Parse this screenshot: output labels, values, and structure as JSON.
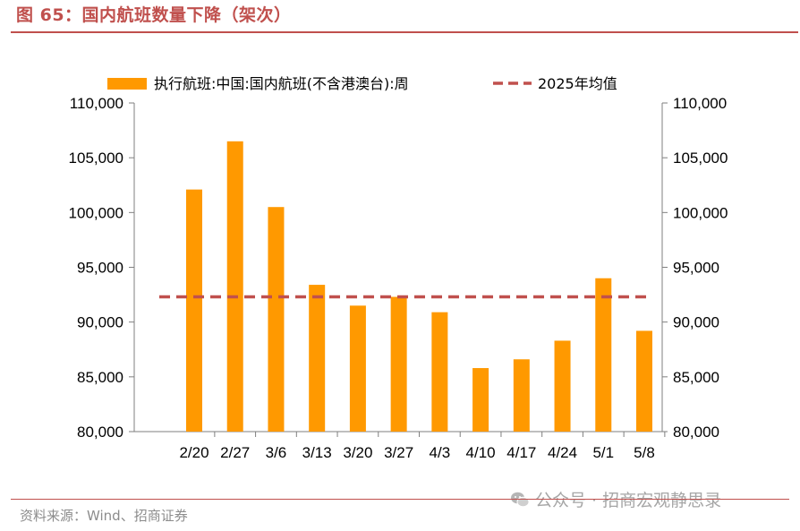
{
  "header": {
    "title": "图 65：国内航班数量下降（架次）"
  },
  "footer": {
    "source": "资料来源：Wind、招商证券",
    "watermark": "公众号 · 招商宏观静思录",
    "watermark_icon": "wechat-icon"
  },
  "colors": {
    "bar": "#ff9900",
    "avg_line": "#c0504d",
    "accent": "#c0504d",
    "axis": "#7f7f7f"
  },
  "chart_data": {
    "type": "bar",
    "categories": [
      "2/20",
      "2/27",
      "3/6",
      "3/13",
      "3/20",
      "3/27",
      "4/3",
      "4/10",
      "4/17",
      "4/24",
      "5/1",
      "5/8"
    ],
    "series": [
      {
        "name": "执行航班:中国:国内航班(不含港澳台):周",
        "type": "bar",
        "values": [
          102100,
          106500,
          100500,
          93400,
          91500,
          92300,
          90900,
          85800,
          86600,
          88300,
          94000,
          89200
        ]
      },
      {
        "name": "2025年均值",
        "type": "line-dashed",
        "value": 92300
      }
    ],
    "ylim": [
      80000,
      110000
    ],
    "yticks": [
      80000,
      85000,
      90000,
      95000,
      100000,
      105000,
      110000
    ],
    "ytick_labels": [
      "80,000",
      "85,000",
      "90,000",
      "95,000",
      "100,000",
      "105,000",
      "110,000"
    ],
    "y_axis_mirrored": true,
    "grid": false,
    "legend_position": "top"
  }
}
